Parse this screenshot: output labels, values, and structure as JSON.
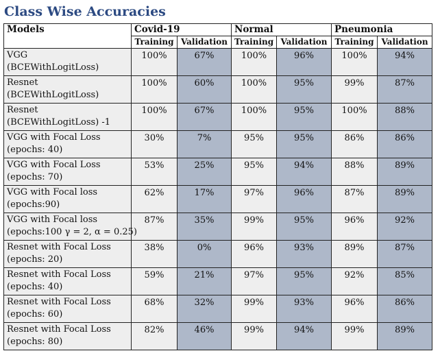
{
  "title": "Class Wise Accuracies",
  "headers": {
    "models": "Models",
    "groups": [
      "Covid-19",
      "Normal",
      "Pneumonia"
    ],
    "training": "Training",
    "validation": "Validation"
  },
  "rows": [
    {
      "line1": "VGG",
      "line2": "(BCEWithLogitLoss)",
      "values": [
        "100%",
        "67%",
        "100%",
        "96%",
        "100%",
        "94%"
      ]
    },
    {
      "line1": "Resnet",
      "line2": "(BCEWithLogitLoss)",
      "values": [
        "100%",
        "60%",
        "100%",
        "95%",
        "99%",
        "87%"
      ]
    },
    {
      "line1": "Resnet",
      "line2": "(BCEWithLogitLoss) -1",
      "values": [
        "100%",
        "67%",
        "100%",
        "95%",
        "100%",
        "88%"
      ]
    },
    {
      "line1": "VGG with Focal Loss",
      "line2": "(epochs: 40)",
      "values": [
        "30%",
        "7%",
        "95%",
        "95%",
        "86%",
        "86%"
      ]
    },
    {
      "line1": "VGG with Focal Loss",
      "line2": "(epochs: 70)",
      "values": [
        "53%",
        "25%",
        "95%",
        "94%",
        "88%",
        "89%"
      ]
    },
    {
      "line1": "VGG with Focal loss",
      "line2": "(epochs:90)",
      "values": [
        "62%",
        "17%",
        "97%",
        "96%",
        "87%",
        "89%"
      ]
    },
    {
      "line1": "VGG with Focal loss",
      "line2": "(epochs:100 γ = 2, α = 0.25)",
      "values": [
        "87%",
        "35%",
        "99%",
        "95%",
        "96%",
        "92%"
      ]
    },
    {
      "line1": "Resnet with Focal Loss",
      "line2": "(epochs: 20)",
      "values": [
        "38%",
        "0%",
        "96%",
        "93%",
        "89%",
        "87%"
      ]
    },
    {
      "line1": "Resnet with Focal Loss",
      "line2": "(epochs: 40)",
      "values": [
        "59%",
        "21%",
        "97%",
        "95%",
        "92%",
        "85%"
      ]
    },
    {
      "line1": "Resnet with Focal Loss",
      "line2": "(epochs: 60)",
      "values": [
        "68%",
        "32%",
        "99%",
        "93%",
        "96%",
        "86%"
      ]
    },
    {
      "line1": "Resnet with Focal Loss",
      "line2": "(epochs: 80)",
      "values": [
        "82%",
        "46%",
        "99%",
        "94%",
        "99%",
        "89%"
      ]
    }
  ],
  "colors": {
    "title": "#2c4a82",
    "training_cell": "#eeeeee",
    "validation_cell": "#aeb8c9"
  }
}
